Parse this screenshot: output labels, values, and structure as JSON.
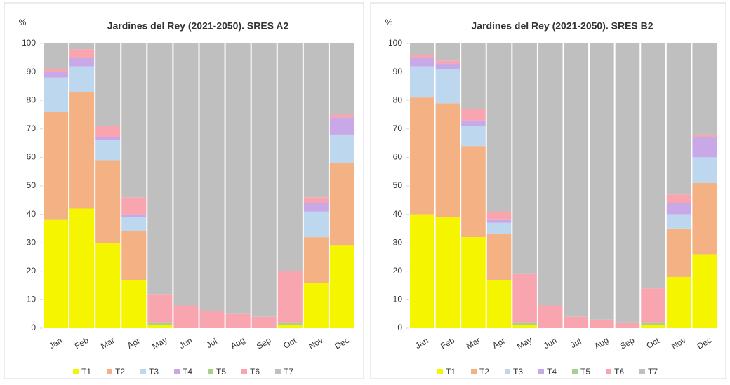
{
  "chart_data": [
    {
      "type": "stacked-bar",
      "title": "Jardines del Rey (2021-2050). SRES A2",
      "y_label": "%",
      "categories": [
        "Jan",
        "Feb",
        "Mar",
        "Apr",
        "May",
        "Jun",
        "Jul",
        "Aug",
        "Sep",
        "Oct",
        "Nov",
        "Dec"
      ],
      "ylim": [
        0,
        100
      ],
      "yticks": [
        0,
        10,
        20,
        30,
        40,
        50,
        60,
        70,
        80,
        90,
        100
      ],
      "series": [
        {
          "name": "T1",
          "color": "#f5f500",
          "values": [
            38,
            42,
            30,
            17,
            1,
            0,
            0,
            0,
            0,
            1,
            16,
            29
          ]
        },
        {
          "name": "T2",
          "color": "#f4b183",
          "values": [
            38,
            41,
            29,
            17,
            0,
            0,
            0,
            0,
            0,
            0,
            16,
            29
          ]
        },
        {
          "name": "T3",
          "color": "#bdd7ee",
          "values": [
            12,
            9,
            7,
            5,
            0,
            0,
            0,
            0,
            0,
            0,
            9,
            10
          ]
        },
        {
          "name": "T4",
          "color": "#c9a8e8",
          "values": [
            2,
            3,
            1,
            1,
            0,
            0,
            0,
            0,
            0,
            0,
            3,
            6
          ]
        },
        {
          "name": "T5",
          "color": "#a9d18e",
          "values": [
            0,
            0,
            0,
            0,
            1,
            0,
            0,
            0,
            0,
            1,
            0,
            0
          ]
        },
        {
          "name": "T6",
          "color": "#f8a5b0",
          "values": [
            1,
            3,
            4,
            6,
            10,
            8,
            6,
            5,
            4,
            18,
            2,
            1
          ]
        },
        {
          "name": "T7",
          "color": "#bfbfbf",
          "values": [
            9,
            2,
            29,
            54,
            88,
            92,
            94,
            95,
            96,
            80,
            54,
            25
          ]
        }
      ]
    },
    {
      "type": "stacked-bar",
      "title": "Jardines del Rey (2021-2050). SRES B2",
      "y_label": "%",
      "categories": [
        "Jan",
        "Feb",
        "Mar",
        "Apr",
        "May",
        "Jun",
        "Jul",
        "Aug",
        "Sep",
        "Oct",
        "Nov",
        "Dec"
      ],
      "ylim": [
        0,
        100
      ],
      "yticks": [
        0,
        10,
        20,
        30,
        40,
        50,
        60,
        70,
        80,
        90,
        100
      ],
      "series": [
        {
          "name": "T1",
          "color": "#f5f500",
          "values": [
            40,
            39,
            32,
            17,
            1,
            0,
            0,
            0,
            0,
            1,
            18,
            26
          ]
        },
        {
          "name": "T2",
          "color": "#f4b183",
          "values": [
            41,
            40,
            32,
            16,
            0,
            0,
            0,
            0,
            0,
            0,
            17,
            25
          ]
        },
        {
          "name": "T3",
          "color": "#bdd7ee",
          "values": [
            11,
            12,
            7,
            4,
            0,
            0,
            0,
            0,
            0,
            0,
            5,
            9
          ]
        },
        {
          "name": "T4",
          "color": "#c9a8e8",
          "values": [
            3,
            2,
            2,
            1,
            0,
            0,
            0,
            0,
            0,
            0,
            4,
            7
          ]
        },
        {
          "name": "T5",
          "color": "#a9d18e",
          "values": [
            0,
            0,
            0,
            0,
            1,
            0,
            0,
            0,
            0,
            1,
            0,
            0
          ]
        },
        {
          "name": "T6",
          "color": "#f8a5b0",
          "values": [
            1,
            1,
            4,
            3,
            17,
            8,
            4,
            3,
            2,
            12,
            3,
            1
          ]
        },
        {
          "name": "T7",
          "color": "#bfbfbf",
          "values": [
            4,
            6,
            23,
            59,
            81,
            92,
            96,
            97,
            98,
            86,
            53,
            32
          ]
        }
      ]
    }
  ]
}
